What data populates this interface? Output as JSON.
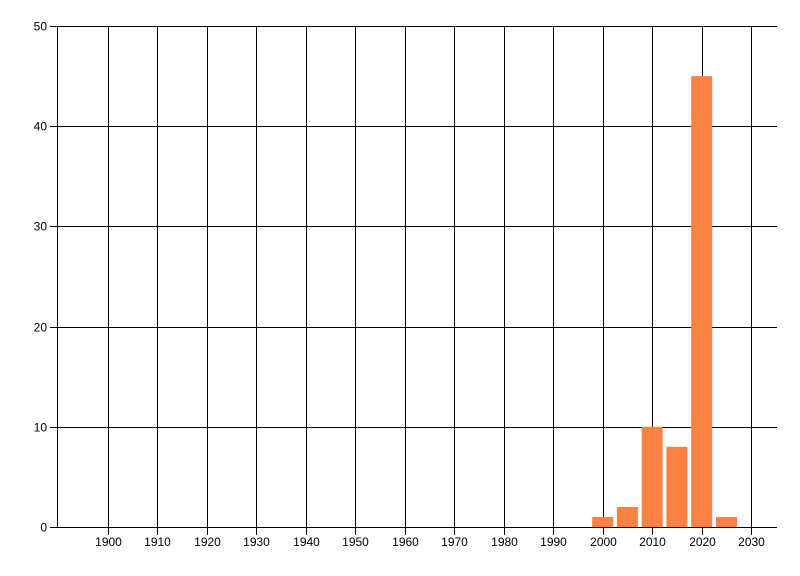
{
  "chart_data": {
    "type": "bar",
    "title": "",
    "xlabel": "",
    "ylabel": "",
    "x": [
      2000,
      2005,
      2010,
      2015,
      2020,
      2025
    ],
    "values": [
      1,
      2,
      10,
      8,
      45,
      1
    ],
    "bar_width_years": 4.25,
    "bar_color": "#fc8144",
    "x_ticks": [
      1900,
      1910,
      1920,
      1930,
      1940,
      1950,
      1960,
      1970,
      1980,
      1990,
      2000,
      2010,
      2020,
      2030
    ],
    "x_tick_labels": [
      "1900",
      "1910",
      "1920",
      "1930",
      "1940",
      "1950",
      "1960",
      "1970",
      "1980",
      "1990",
      "2000",
      "2010",
      "2020",
      "2030"
    ],
    "y_ticks": [
      0,
      10,
      20,
      30,
      40,
      50
    ],
    "y_tick_labels": [
      "0",
      "10",
      "20",
      "30",
      "40",
      "50"
    ],
    "xlim": [
      1889.8,
      2035.2
    ],
    "ylim": [
      0,
      50
    ],
    "grid": true,
    "grid_color": "#000000",
    "axis_color": "#000000",
    "text_color": "#000000",
    "background": "#ffffff",
    "legend": null
  }
}
